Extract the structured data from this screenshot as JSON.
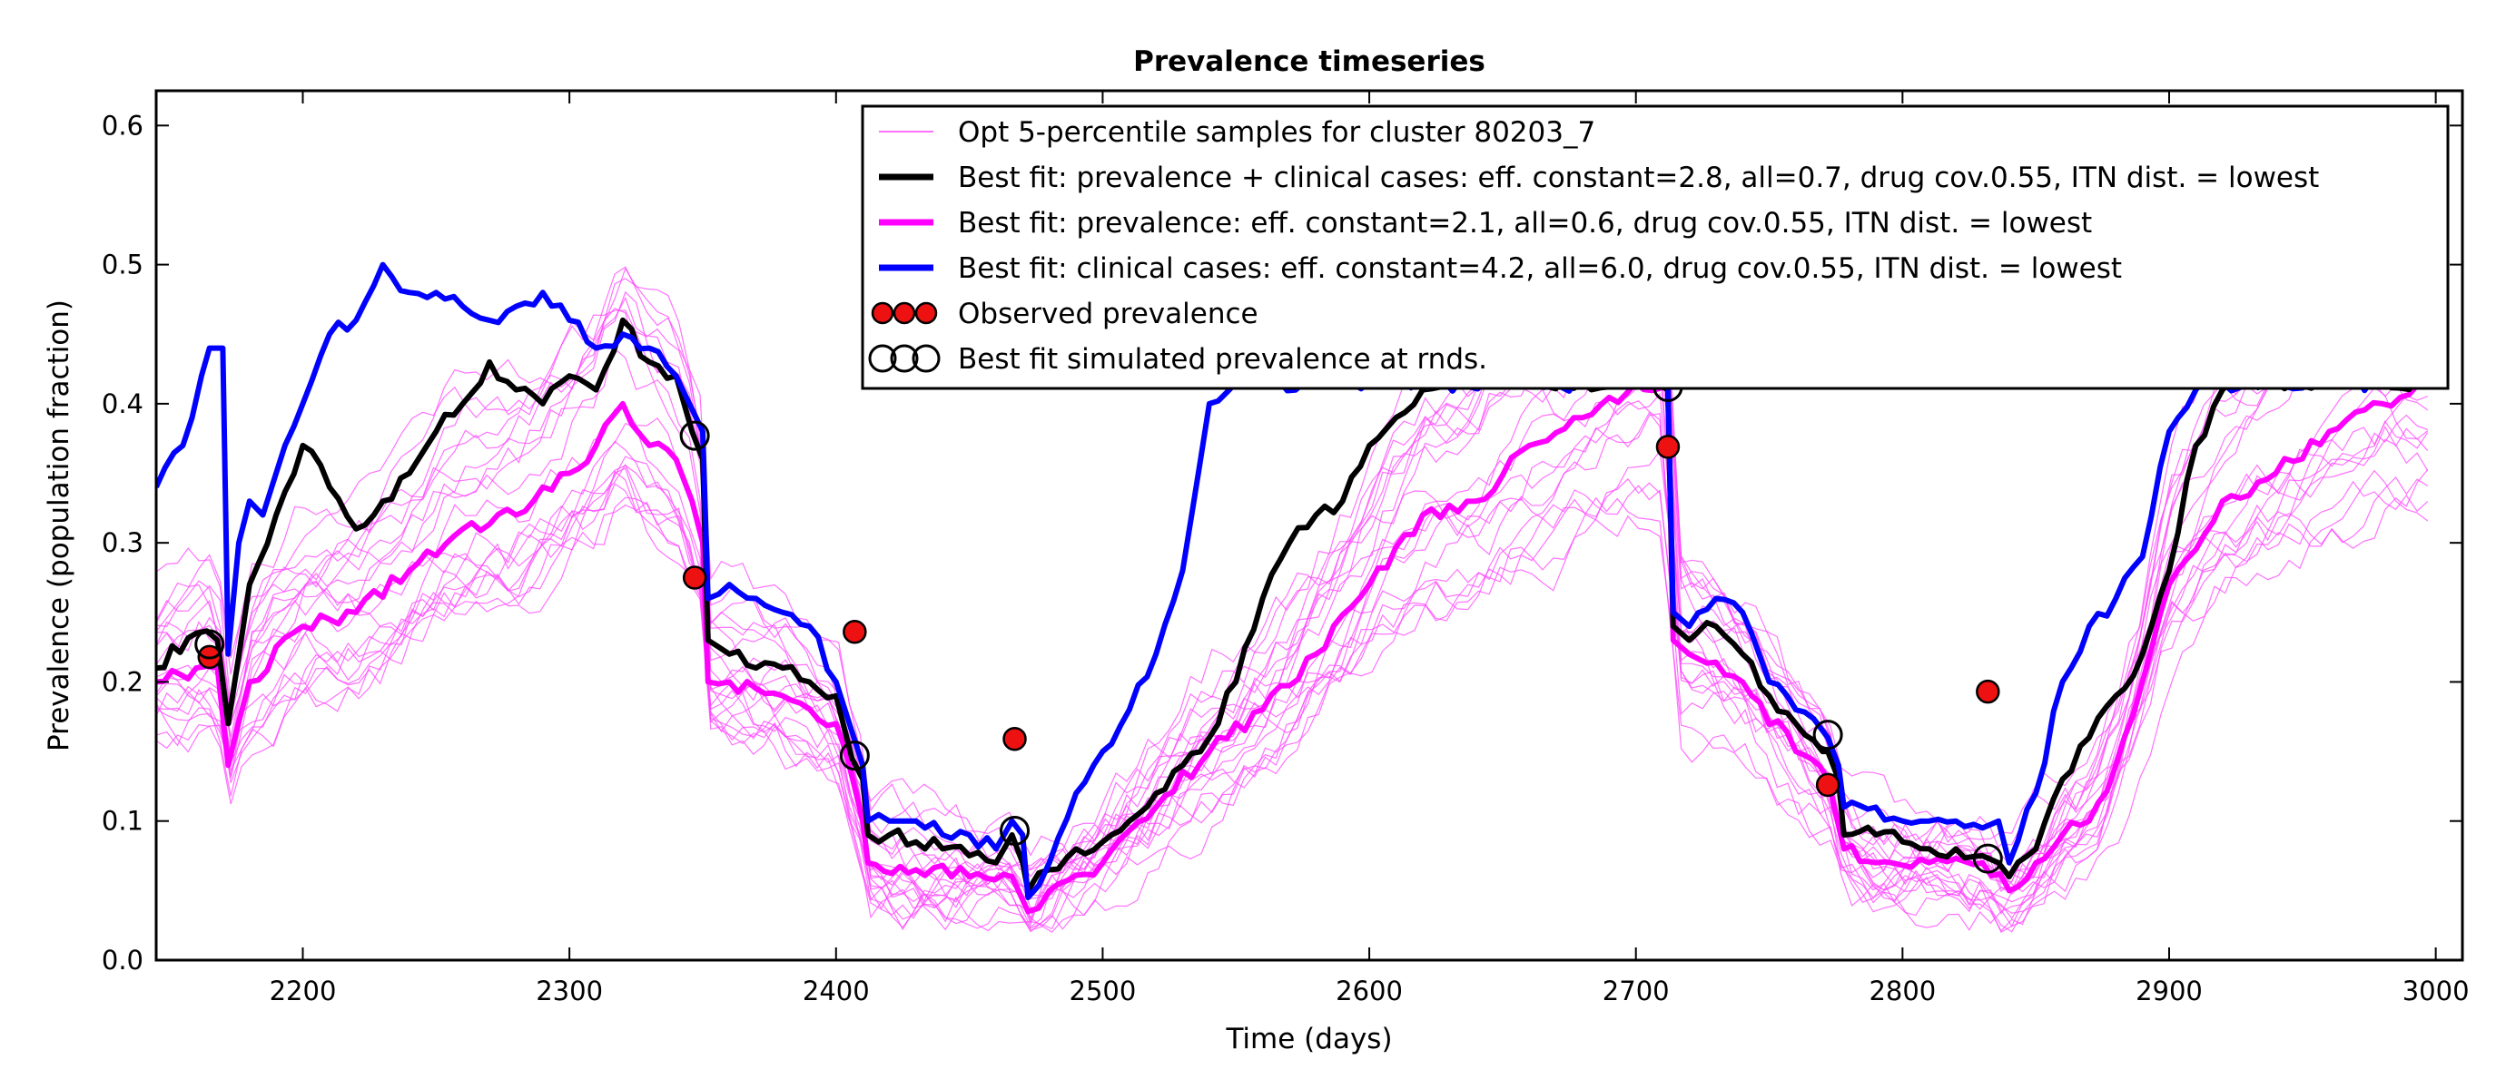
{
  "chart_data": {
    "type": "line",
    "title": "Prevalence timeseries",
    "xlabel": "Time (days)",
    "ylabel": "Prevalence (population fraction)",
    "xlim": [
      2145,
      3010
    ],
    "ylim": [
      0.0,
      0.625
    ],
    "xticks": [
      2200,
      2300,
      2400,
      2500,
      2600,
      2700,
      2800,
      2900,
      3000
    ],
    "yticks": [
      0.0,
      0.1,
      0.2,
      0.3,
      0.4,
      0.5,
      0.6
    ],
    "xtick_labels": [
      "2200",
      "2300",
      "2400",
      "2500",
      "2600",
      "2700",
      "2800",
      "2900",
      "3000"
    ],
    "ytick_labels": [
      "0.0",
      "0.1",
      "0.2",
      "0.3",
      "0.4",
      "0.5",
      "0.6"
    ],
    "grid": false,
    "legend_position": "top-right",
    "colors": {
      "samples": "#ff44ff",
      "best_combined": "#000000",
      "best_prevalence": "#ff00ff",
      "best_clinical": "#0000ff",
      "observed": "#ee1111"
    },
    "legend": [
      {
        "label": "Opt 5-percentile samples for cluster 80203_7",
        "kind": "thin-line",
        "color": "#ff44ff"
      },
      {
        "label": "Best fit: prevalence + clinical cases: eff. constant=2.8, all=0.7, drug cov.0.55, ITN dist. = lowest",
        "kind": "line",
        "color": "#000000"
      },
      {
        "label": "Best fit: prevalence: eff. constant=2.1, all=0.6, drug cov.0.55, ITN dist. = lowest",
        "kind": "line",
        "color": "#ff00ff"
      },
      {
        "label": "Best fit: clinical cases: eff. constant=4.2, all=6.0, drug cov.0.55, ITN dist. = lowest",
        "kind": "line",
        "color": "#0000ff"
      },
      {
        "label": "Observed prevalence",
        "kind": "filled-circles",
        "color": "#ee1111"
      },
      {
        "label": "Best fit simulated prevalence at rnds.",
        "kind": "open-circles",
        "color": "#000000"
      }
    ],
    "series": [
      {
        "key": "best_combined",
        "x": [
          2145,
          2160,
          2168,
          2172,
          2180,
          2190,
          2200,
          2210,
          2220,
          2230,
          2240,
          2250,
          2260,
          2270,
          2280,
          2290,
          2300,
          2310,
          2320,
          2330,
          2340,
          2346,
          2350,
          2352,
          2360,
          2370,
          2380,
          2390,
          2400,
          2406,
          2410,
          2412,
          2420,
          2430,
          2440,
          2450,
          2460,
          2466,
          2470,
          2472,
          2480,
          2490,
          2500,
          2510,
          2520,
          2530,
          2540,
          2550,
          2560,
          2570,
          2580,
          2590,
          2600,
          2610,
          2620,
          2640,
          2660,
          2680,
          2700,
          2712,
          2714,
          2720,
          2730,
          2740,
          2750,
          2760,
          2770,
          2772,
          2776,
          2778,
          2790,
          2800,
          2810,
          2820,
          2830,
          2836,
          2840,
          2850,
          2860,
          2870,
          2880,
          2890,
          2900,
          2910,
          2920,
          2940,
          2960,
          2980,
          3000
        ],
        "y": [
          0.21,
          0.235,
          0.23,
          0.17,
          0.27,
          0.32,
          0.37,
          0.34,
          0.31,
          0.33,
          0.35,
          0.38,
          0.4,
          0.43,
          0.41,
          0.4,
          0.42,
          0.41,
          0.46,
          0.43,
          0.42,
          0.38,
          0.36,
          0.23,
          0.22,
          0.21,
          0.21,
          0.2,
          0.19,
          0.145,
          0.13,
          0.09,
          0.09,
          0.085,
          0.08,
          0.075,
          0.07,
          0.09,
          0.07,
          0.05,
          0.065,
          0.08,
          0.085,
          0.1,
          0.12,
          0.14,
          0.16,
          0.2,
          0.26,
          0.3,
          0.32,
          0.33,
          0.37,
          0.39,
          0.41,
          0.415,
          0.415,
          0.415,
          0.415,
          0.41,
          0.24,
          0.23,
          0.24,
          0.22,
          0.19,
          0.17,
          0.15,
          0.15,
          0.13,
          0.09,
          0.09,
          0.085,
          0.08,
          0.08,
          0.075,
          0.07,
          0.06,
          0.08,
          0.13,
          0.16,
          0.19,
          0.22,
          0.28,
          0.37,
          0.41,
          0.415,
          0.415,
          0.415,
          0.415
        ]
      },
      {
        "key": "best_prevalence",
        "x": [
          2145,
          2160,
          2168,
          2172,
          2180,
          2200,
          2220,
          2240,
          2260,
          2280,
          2300,
          2310,
          2320,
          2330,
          2340,
          2346,
          2350,
          2352,
          2360,
          2380,
          2400,
          2410,
          2412,
          2430,
          2450,
          2466,
          2472,
          2480,
          2500,
          2520,
          2540,
          2560,
          2580,
          2600,
          2620,
          2640,
          2660,
          2680,
          2700,
          2712,
          2714,
          2720,
          2740,
          2760,
          2772,
          2778,
          2790,
          2810,
          2830,
          2840,
          2850,
          2860,
          2870,
          2880,
          2890,
          2900,
          2920,
          2940,
          2960,
          2980,
          3000
        ],
        "y": [
          0.2,
          0.21,
          0.21,
          0.14,
          0.2,
          0.24,
          0.25,
          0.28,
          0.31,
          0.32,
          0.35,
          0.37,
          0.4,
          0.37,
          0.36,
          0.33,
          0.3,
          0.2,
          0.2,
          0.19,
          0.17,
          0.1,
          0.07,
          0.065,
          0.06,
          0.06,
          0.035,
          0.05,
          0.07,
          0.11,
          0.15,
          0.18,
          0.22,
          0.27,
          0.32,
          0.33,
          0.37,
          0.39,
          0.415,
          0.415,
          0.23,
          0.22,
          0.2,
          0.15,
          0.13,
          0.08,
          0.07,
          0.07,
          0.07,
          0.05,
          0.07,
          0.09,
          0.1,
          0.14,
          0.2,
          0.27,
          0.33,
          0.35,
          0.38,
          0.4,
          0.415
        ]
      },
      {
        "key": "best_clinical",
        "x": [
          2145,
          2155,
          2162,
          2165,
          2168,
          2170,
          2172,
          2176,
          2180,
          2185,
          2190,
          2200,
          2210,
          2220,
          2230,
          2240,
          2250,
          2260,
          2270,
          2280,
          2290,
          2300,
          2310,
          2320,
          2330,
          2340,
          2345,
          2350,
          2352,
          2360,
          2370,
          2380,
          2390,
          2400,
          2405,
          2410,
          2412,
          2420,
          2430,
          2440,
          2450,
          2460,
          2466,
          2470,
          2472,
          2480,
          2490,
          2500,
          2510,
          2520,
          2530,
          2540,
          2550,
          2560,
          2600,
          2650,
          2700,
          2712,
          2714,
          2720,
          2730,
          2740,
          2750,
          2760,
          2770,
          2772,
          2776,
          2778,
          2790,
          2800,
          2810,
          2820,
          2830,
          2836,
          2840,
          2850,
          2860,
          2870,
          2880,
          2890,
          2900,
          2910,
          2920,
          2940,
          2960,
          2980,
          3000
        ],
        "y": [
          0.34,
          0.37,
          0.42,
          0.44,
          0.44,
          0.44,
          0.22,
          0.3,
          0.33,
          0.32,
          0.35,
          0.4,
          0.45,
          0.46,
          0.5,
          0.48,
          0.48,
          0.47,
          0.46,
          0.47,
          0.48,
          0.46,
          0.44,
          0.45,
          0.44,
          0.42,
          0.4,
          0.38,
          0.26,
          0.27,
          0.26,
          0.25,
          0.24,
          0.2,
          0.17,
          0.14,
          0.1,
          0.1,
          0.1,
          0.09,
          0.09,
          0.08,
          0.1,
          0.09,
          0.045,
          0.07,
          0.12,
          0.15,
          0.18,
          0.22,
          0.28,
          0.4,
          0.415,
          0.415,
          0.415,
          0.415,
          0.415,
          0.415,
          0.25,
          0.24,
          0.26,
          0.25,
          0.2,
          0.18,
          0.165,
          0.16,
          0.14,
          0.11,
          0.11,
          0.1,
          0.1,
          0.1,
          0.095,
          0.1,
          0.07,
          0.12,
          0.2,
          0.24,
          0.26,
          0.29,
          0.38,
          0.41,
          0.415,
          0.415,
          0.415,
          0.415,
          0.415
        ]
      }
    ],
    "observed_prevalence": {
      "x": [
        2165,
        2347,
        2407,
        2467,
        2712,
        2772,
        2832
      ],
      "y": [
        0.218,
        0.275,
        0.236,
        0.159,
        0.369,
        0.126,
        0.193
      ]
    },
    "simulated_prevalence_at_rounds": {
      "x": [
        2165,
        2347,
        2407,
        2467,
        2712,
        2772,
        2832
      ],
      "y": [
        0.227,
        0.377,
        0.147,
        0.093,
        0.412,
        0.162,
        0.073
      ]
    }
  }
}
